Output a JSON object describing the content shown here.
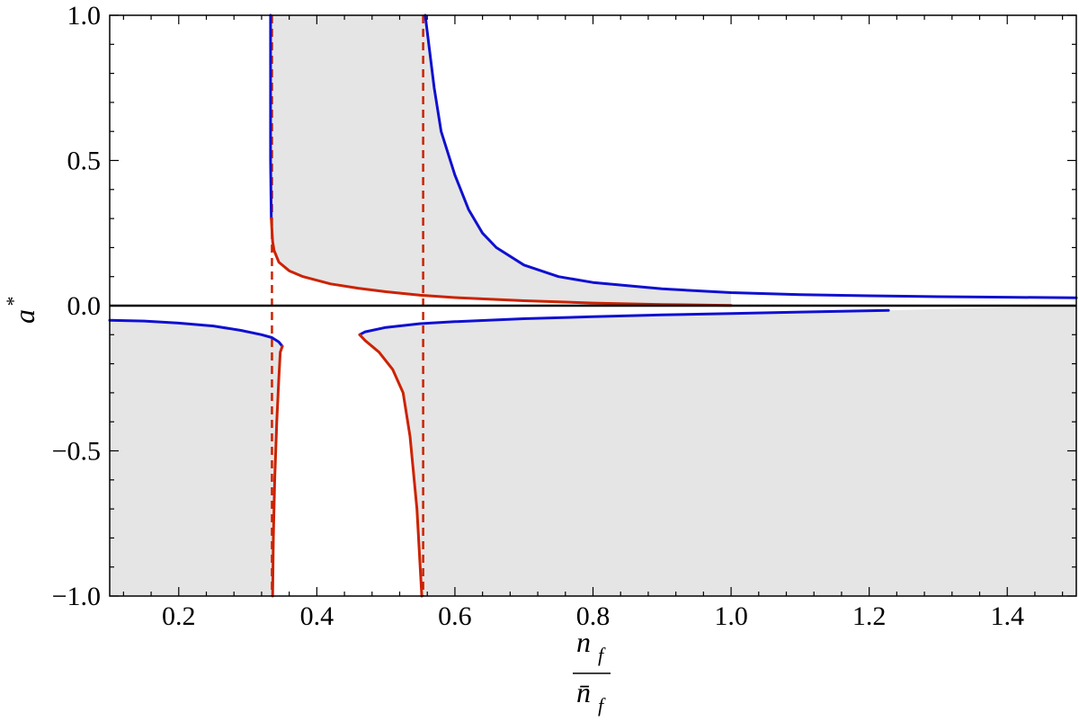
{
  "chart_data": {
    "type": "line",
    "title": "",
    "xlabel": {
      "numerator": "n",
      "numerator_sub": "f",
      "denominator": "n̄",
      "denominator_sub": "f"
    },
    "ylabel": {
      "base": "a",
      "sup": "*"
    },
    "xlim": [
      0.1,
      1.5
    ],
    "ylim": [
      -1.0,
      1.0
    ],
    "x_ticks": [
      "0.2",
      "0.4",
      "0.6",
      "0.8",
      "1.0",
      "1.2",
      "1.4"
    ],
    "y_ticks": [
      "1.0",
      "0.5",
      "0.0",
      "−0.5",
      "−1.0"
    ],
    "grid": false,
    "legend": "none",
    "colors": {
      "blue": "#1010d0",
      "red": "#cc2200",
      "shade": "#e5e5e5",
      "axis": "#000000"
    },
    "asymptotes_x": [
      0.335,
      0.554
    ],
    "series": [
      {
        "color": "blue",
        "points": [
          [
            0.333,
            1.0
          ],
          [
            0.333,
            0.5
          ],
          [
            0.334,
            0.3
          ]
        ]
      },
      {
        "color": "red",
        "points": [
          [
            0.334,
            0.3
          ],
          [
            0.336,
            0.22
          ],
          [
            0.338,
            0.19
          ],
          [
            0.345,
            0.15
          ],
          [
            0.36,
            0.12
          ],
          [
            0.38,
            0.1
          ],
          [
            0.42,
            0.075
          ],
          [
            0.46,
            0.06
          ],
          [
            0.5,
            0.048
          ],
          [
            0.55,
            0.036
          ],
          [
            0.6,
            0.028
          ],
          [
            0.7,
            0.017
          ],
          [
            0.8,
            0.009
          ],
          [
            0.9,
            0.004
          ],
          [
            1.0,
            0.001
          ]
        ]
      },
      {
        "color": "blue",
        "points": [
          [
            0.557,
            1.0
          ],
          [
            0.57,
            0.75
          ],
          [
            0.58,
            0.6
          ],
          [
            0.6,
            0.45
          ],
          [
            0.62,
            0.33
          ],
          [
            0.64,
            0.25
          ],
          [
            0.66,
            0.2
          ],
          [
            0.7,
            0.14
          ],
          [
            0.75,
            0.1
          ],
          [
            0.8,
            0.08
          ],
          [
            0.9,
            0.058
          ],
          [
            1.0,
            0.045
          ],
          [
            1.1,
            0.038
          ],
          [
            1.2,
            0.034
          ],
          [
            1.3,
            0.031
          ],
          [
            1.4,
            0.029
          ],
          [
            1.5,
            0.027
          ]
        ]
      },
      {
        "color": "blue",
        "points": [
          [
            0.1,
            -0.05
          ],
          [
            0.15,
            -0.053
          ],
          [
            0.2,
            -0.06
          ],
          [
            0.25,
            -0.07
          ],
          [
            0.29,
            -0.085
          ],
          [
            0.32,
            -0.1
          ],
          [
            0.335,
            -0.11
          ],
          [
            0.345,
            -0.125
          ],
          [
            0.35,
            -0.14
          ]
        ]
      },
      {
        "color": "red",
        "points": [
          [
            0.35,
            -0.14
          ],
          [
            0.347,
            -0.16
          ],
          [
            0.345,
            -0.25
          ],
          [
            0.342,
            -0.4
          ],
          [
            0.339,
            -0.6
          ],
          [
            0.337,
            -0.8
          ],
          [
            0.336,
            -1.0
          ]
        ]
      },
      {
        "color": "blue",
        "points": [
          [
            0.462,
            -0.1
          ],
          [
            0.47,
            -0.09
          ],
          [
            0.5,
            -0.075
          ],
          [
            0.55,
            -0.062
          ],
          [
            0.6,
            -0.055
          ],
          [
            0.7,
            -0.045
          ],
          [
            0.8,
            -0.038
          ],
          [
            0.9,
            -0.032
          ],
          [
            1.0,
            -0.027
          ],
          [
            1.1,
            -0.022
          ],
          [
            1.228,
            -0.016
          ]
        ]
      },
      {
        "color": "red",
        "points": [
          [
            0.462,
            -0.1
          ],
          [
            0.47,
            -0.12
          ],
          [
            0.49,
            -0.16
          ],
          [
            0.51,
            -0.22
          ],
          [
            0.525,
            -0.3
          ],
          [
            0.535,
            -0.45
          ],
          [
            0.545,
            -0.7
          ],
          [
            0.552,
            -1.0
          ]
        ]
      }
    ],
    "shaded_regions": [
      {
        "points": [
          [
            0.1,
            -0.05
          ],
          [
            0.15,
            -0.053
          ],
          [
            0.2,
            -0.06
          ],
          [
            0.25,
            -0.07
          ],
          [
            0.29,
            -0.085
          ],
          [
            0.32,
            -0.1
          ],
          [
            0.335,
            -0.11
          ],
          [
            0.345,
            -0.125
          ],
          [
            0.35,
            -0.14
          ],
          [
            0.347,
            -0.16
          ],
          [
            0.345,
            -0.25
          ],
          [
            0.342,
            -0.4
          ],
          [
            0.339,
            -0.6
          ],
          [
            0.337,
            -0.8
          ],
          [
            0.336,
            -1.0
          ],
          [
            0.1,
            -1.0
          ]
        ]
      },
      {
        "points": [
          [
            0.462,
            -0.1
          ],
          [
            0.47,
            -0.12
          ],
          [
            0.49,
            -0.16
          ],
          [
            0.51,
            -0.22
          ],
          [
            0.525,
            -0.3
          ],
          [
            0.535,
            -0.45
          ],
          [
            0.545,
            -0.7
          ],
          [
            0.552,
            -1.0
          ],
          [
            1.5,
            -1.0
          ],
          [
            1.5,
            0.0
          ],
          [
            1.228,
            -0.016
          ],
          [
            1.1,
            -0.022
          ],
          [
            1.0,
            -0.027
          ],
          [
            0.9,
            -0.032
          ],
          [
            0.8,
            -0.038
          ],
          [
            0.7,
            -0.045
          ],
          [
            0.6,
            -0.055
          ],
          [
            0.55,
            -0.062
          ],
          [
            0.5,
            -0.075
          ],
          [
            0.47,
            -0.09
          ]
        ]
      },
      {
        "points": [
          [
            0.334,
            1.0
          ],
          [
            0.334,
            0.3
          ],
          [
            0.336,
            0.22
          ],
          [
            0.338,
            0.19
          ],
          [
            0.345,
            0.15
          ],
          [
            0.36,
            0.12
          ],
          [
            0.38,
            0.1
          ],
          [
            0.42,
            0.075
          ],
          [
            0.46,
            0.06
          ],
          [
            0.5,
            0.048
          ],
          [
            0.55,
            0.036
          ],
          [
            0.6,
            0.028
          ],
          [
            0.7,
            0.017
          ],
          [
            0.8,
            0.009
          ],
          [
            0.9,
            0.004
          ],
          [
            1.0,
            0.001
          ],
          [
            1.0,
            0.045
          ],
          [
            0.9,
            0.058
          ],
          [
            0.8,
            0.08
          ],
          [
            0.75,
            0.1
          ],
          [
            0.7,
            0.14
          ],
          [
            0.66,
            0.2
          ],
          [
            0.64,
            0.25
          ],
          [
            0.62,
            0.33
          ],
          [
            0.6,
            0.45
          ],
          [
            0.58,
            0.6
          ],
          [
            0.57,
            0.75
          ],
          [
            0.557,
            1.0
          ]
        ]
      }
    ]
  }
}
